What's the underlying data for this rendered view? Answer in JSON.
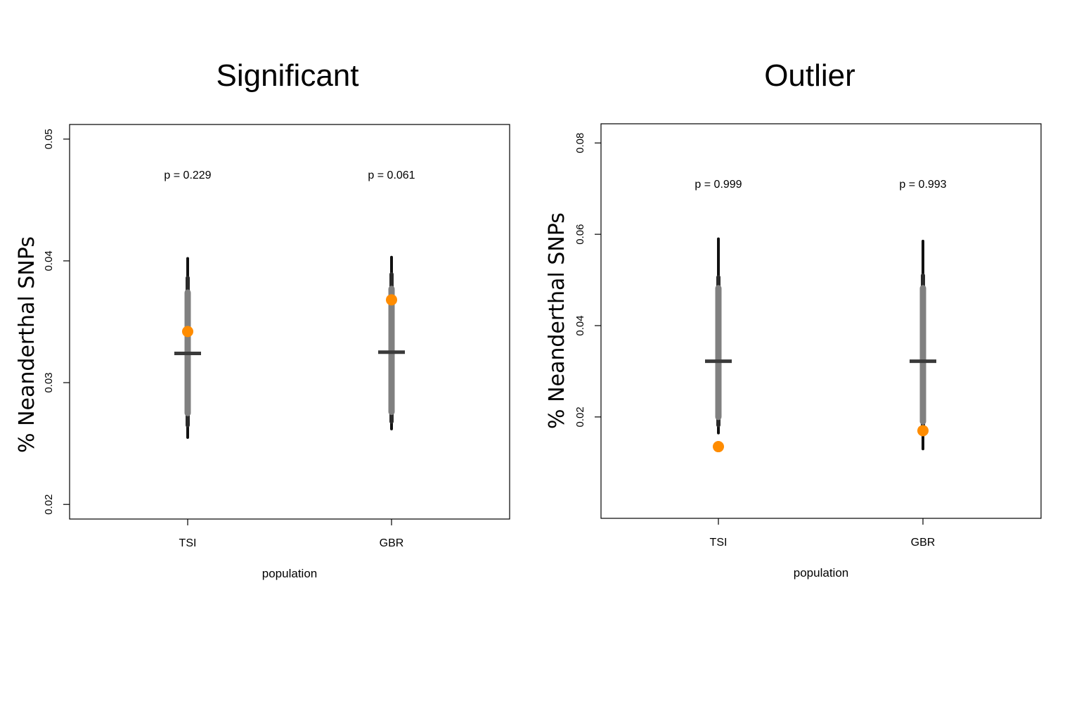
{
  "chart_data": [
    {
      "type": "interval",
      "title": "Significant",
      "xlabel": "population",
      "ylabel": "% Neanderthal SNPs",
      "yticks": [
        "0.02",
        "0.03",
        "0.04",
        "0.05"
      ],
      "ylim": [
        0.0188,
        0.0512
      ],
      "categories": [
        "TSI",
        "GBR"
      ],
      "series": [
        {
          "category": "TSI",
          "p_label": "p = 0.229",
          "median": 0.0324,
          "inner": [
            0.0275,
            0.0374
          ],
          "middle": [
            0.0265,
            0.0386
          ],
          "outer": [
            0.0255,
            0.0402
          ],
          "observed": 0.0342
        },
        {
          "category": "GBR",
          "p_label": "p = 0.061",
          "median": 0.0325,
          "inner": [
            0.0276,
            0.0377
          ],
          "middle": [
            0.0268,
            0.0389
          ],
          "outer": [
            0.0262,
            0.0403
          ],
          "observed": 0.0368
        }
      ],
      "colors": {
        "observed": "#ff8c00",
        "inner": "#808080",
        "middle": "#2b2b2b",
        "outer": "#111111",
        "median": "#3a3a3a"
      }
    },
    {
      "type": "interval",
      "title": "Outlier",
      "xlabel": "population",
      "ylabel": "% Neanderthal SNPs",
      "yticks": [
        "0.02",
        "0.04",
        "0.06",
        "0.08"
      ],
      "ylim": [
        -0.0022,
        0.0842
      ],
      "categories": [
        "TSI",
        "GBR"
      ],
      "series": [
        {
          "category": "TSI",
          "p_label": "p = 0.999",
          "median": 0.0322,
          "inner": [
            0.02,
            0.0482
          ],
          "middle": [
            0.0182,
            0.0506
          ],
          "outer": [
            0.0165,
            0.059
          ],
          "observed": 0.0135
        },
        {
          "category": "GBR",
          "p_label": "p = 0.993",
          "median": 0.0322,
          "inner": [
            0.019,
            0.0482
          ],
          "middle": [
            0.017,
            0.051
          ],
          "outer": [
            0.013,
            0.0585
          ],
          "observed": 0.017
        }
      ],
      "colors": {
        "observed": "#ff8c00",
        "inner": "#808080",
        "middle": "#2b2b2b",
        "outer": "#111111",
        "median": "#3a3a3a"
      }
    }
  ]
}
